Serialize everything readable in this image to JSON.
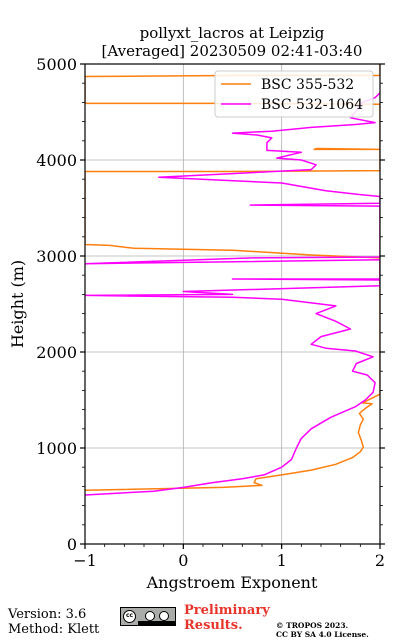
{
  "chart_data": {
    "type": "line",
    "title": "pollyxt_lacros at Leipzig",
    "subtitle": "[Averaged] 20230509 02:41-03:40",
    "xlabel": "Angstroem Exponent",
    "ylabel": "Height (m)",
    "xlim": [
      -1,
      2
    ],
    "ylim": [
      0,
      5000
    ],
    "xticks": [
      "−1",
      "0",
      "1",
      "2"
    ],
    "yticks": [
      "0",
      "1000",
      "2000",
      "3000",
      "4000",
      "5000"
    ],
    "grid": true,
    "legend_position": "top-right",
    "series": [
      {
        "name": "BSC 355-532",
        "color": "#ff7f0e",
        "points": [
          [
            -1.0,
            560
          ],
          [
            0.4,
            590
          ],
          [
            0.8,
            610
          ],
          [
            0.72,
            640
          ],
          [
            0.74,
            680
          ],
          [
            1.0,
            720
          ],
          [
            1.3,
            770
          ],
          [
            1.55,
            830
          ],
          [
            1.72,
            900
          ],
          [
            1.8,
            960
          ],
          [
            1.83,
            1010
          ],
          [
            1.81,
            1080
          ],
          [
            1.78,
            1160
          ],
          [
            1.8,
            1240
          ],
          [
            1.83,
            1300
          ],
          [
            1.79,
            1360
          ],
          [
            1.86,
            1420
          ],
          [
            1.92,
            1460
          ],
          [
            1.82,
            1470
          ],
          [
            2.0,
            1560
          ],
          [
            2.0,
            2980
          ],
          [
            1.3,
            3010
          ],
          [
            0.5,
            3060
          ],
          [
            -0.5,
            3080
          ],
          [
            -0.75,
            3110
          ],
          [
            -1.0,
            3120
          ],
          [
            -1.0,
            3880
          ],
          [
            0.45,
            3880
          ],
          [
            2.0,
            3890
          ],
          [
            2.0,
            4110
          ],
          [
            1.33,
            4110
          ],
          [
            1.36,
            4120
          ],
          [
            2.0,
            4110
          ],
          [
            2.0,
            4580
          ],
          [
            0.5,
            4590
          ],
          [
            -1.0,
            4590
          ],
          [
            -1.0,
            4870
          ],
          [
            0.5,
            4880
          ],
          [
            2.0,
            4880
          ],
          [
            2.0,
            5000
          ]
        ]
      },
      {
        "name": "BSC 532-1064",
        "color": "#ff00ff",
        "points": [
          [
            -1.0,
            510
          ],
          [
            -0.3,
            550
          ],
          [
            0.0,
            590
          ],
          [
            0.3,
            640
          ],
          [
            0.6,
            680
          ],
          [
            0.82,
            720
          ],
          [
            1.0,
            800
          ],
          [
            1.1,
            880
          ],
          [
            1.15,
            1000
          ],
          [
            1.2,
            1100
          ],
          [
            1.3,
            1200
          ],
          [
            1.5,
            1320
          ],
          [
            1.75,
            1430
          ],
          [
            1.85,
            1500
          ],
          [
            1.93,
            1580
          ],
          [
            1.95,
            1680
          ],
          [
            1.87,
            1760
          ],
          [
            1.72,
            1800
          ],
          [
            1.76,
            1880
          ],
          [
            1.93,
            1950
          ],
          [
            1.75,
            2010
          ],
          [
            1.45,
            2040
          ],
          [
            1.3,
            2080
          ],
          [
            1.4,
            2160
          ],
          [
            1.7,
            2240
          ],
          [
            1.55,
            2320
          ],
          [
            1.35,
            2400
          ],
          [
            1.55,
            2480
          ],
          [
            1.0,
            2550
          ],
          [
            0.5,
            2570
          ],
          [
            -1.0,
            2590
          ],
          [
            0.5,
            2600
          ],
          [
            0.0,
            2630
          ],
          [
            2.0,
            2690
          ],
          [
            2.0,
            2750
          ],
          [
            0.5,
            2760
          ],
          [
            2.0,
            2760
          ],
          [
            2.0,
            2960
          ],
          [
            -1.0,
            2920
          ],
          [
            0.7,
            2980
          ],
          [
            2.0,
            2990
          ],
          [
            2.0,
            3520
          ],
          [
            0.68,
            3530
          ],
          [
            2.0,
            3550
          ],
          [
            2.0,
            3620
          ],
          [
            1.8,
            3640
          ],
          [
            1.45,
            3680
          ],
          [
            1.0,
            3760
          ],
          [
            -0.25,
            3820
          ],
          [
            1.3,
            3900
          ],
          [
            1.35,
            3950
          ],
          [
            1.2,
            4000
          ],
          [
            0.95,
            4020
          ],
          [
            1.2,
            4080
          ],
          [
            0.85,
            4100
          ],
          [
            0.85,
            4180
          ],
          [
            0.9,
            4230
          ],
          [
            0.75,
            4260
          ],
          [
            0.5,
            4280
          ],
          [
            0.9,
            4300
          ],
          [
            1.3,
            4340
          ],
          [
            1.75,
            4370
          ],
          [
            1.95,
            4390
          ],
          [
            1.7,
            4440
          ],
          [
            1.75,
            4500
          ],
          [
            1.82,
            4600
          ],
          [
            1.95,
            4650
          ],
          [
            2.0,
            4700
          ]
        ]
      }
    ]
  },
  "footer": {
    "version": "Version: 3.6",
    "method": "Method: Klett",
    "prelim_line1": "Preliminary",
    "prelim_line2": "Results.",
    "copyright": "© TROPOS 2023.",
    "license": "CC BY SA 4.0 License.",
    "cc_logo_text": "cc BY SA"
  }
}
